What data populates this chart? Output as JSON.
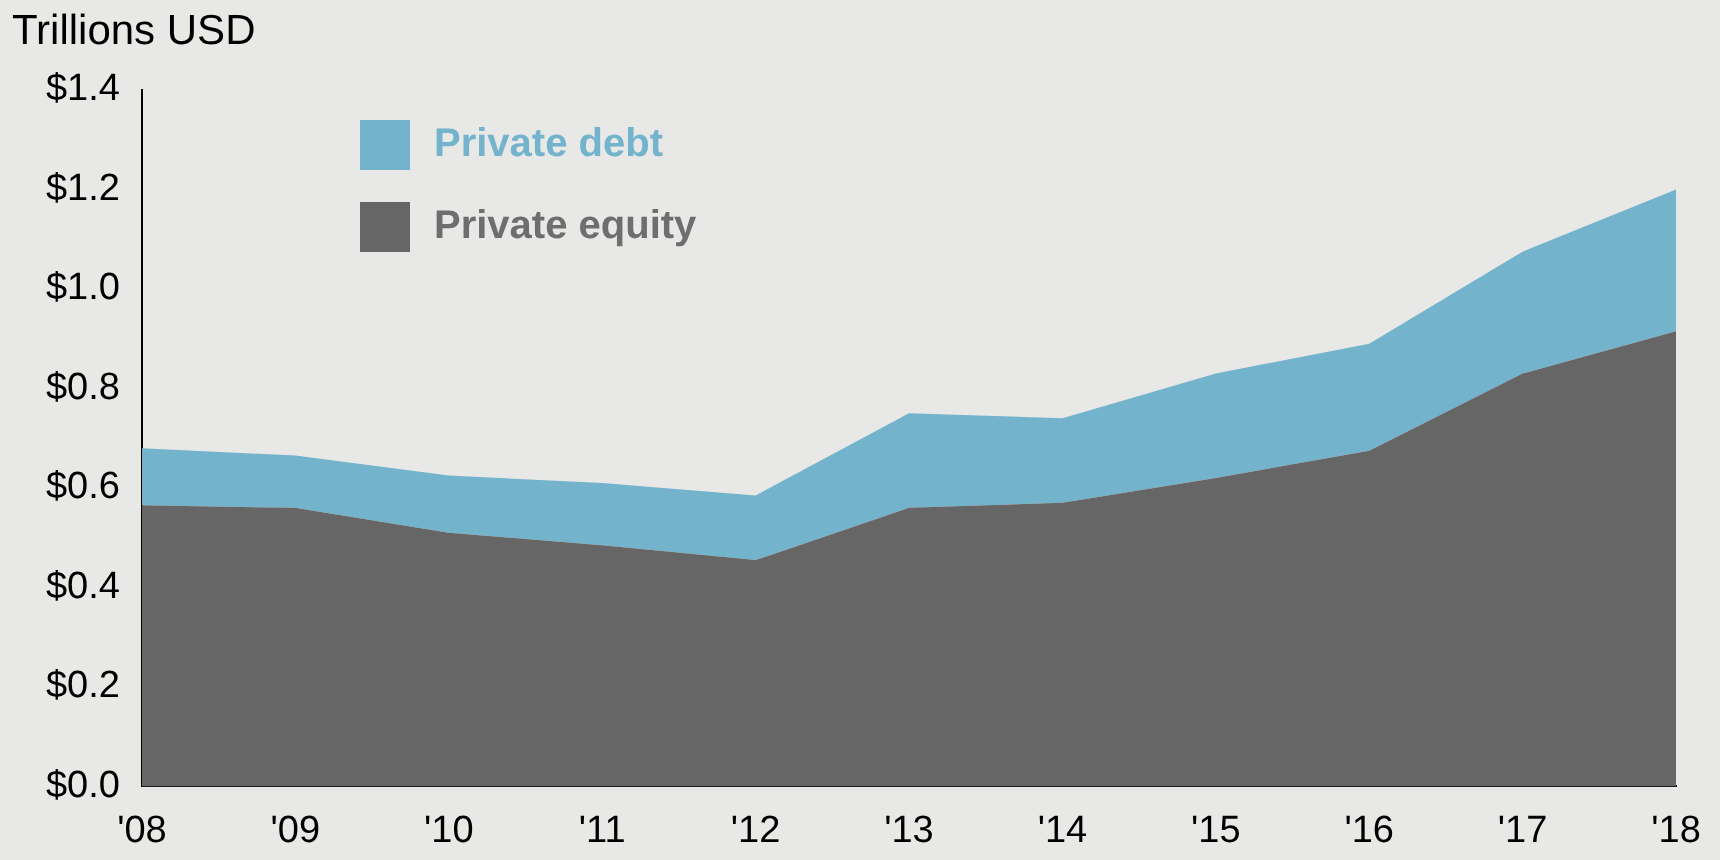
{
  "chart_data": {
    "type": "area",
    "stacked": true,
    "ylabel": "Trillions USD",
    "categories": [
      "'08",
      "'09",
      "'10",
      "'11",
      "'12",
      "'13",
      "'14",
      "'15",
      "'16",
      "'17",
      "'18"
    ],
    "series": [
      {
        "name": "Private equity",
        "color": "#666666",
        "values": [
          0.565,
          0.56,
          0.51,
          0.485,
          0.455,
          0.56,
          0.57,
          0.62,
          0.675,
          0.83,
          0.915
        ]
      },
      {
        "name": "Private debt",
        "color": "#73b3cc",
        "values": [
          0.115,
          0.105,
          0.115,
          0.125,
          0.13,
          0.19,
          0.17,
          0.21,
          0.215,
          0.245,
          0.285
        ]
      }
    ],
    "ylim": [
      0,
      1.4
    ],
    "yticks": [
      {
        "value": 0,
        "label": "$0.0"
      },
      {
        "value": 0.2,
        "label": "$0.2"
      },
      {
        "value": 0.4,
        "label": "$0.4"
      },
      {
        "value": 0.6,
        "label": "$0.6"
      },
      {
        "value": 0.8,
        "label": "$0.8"
      },
      {
        "value": 1.0,
        "label": "$1.0"
      },
      {
        "value": 1.2,
        "label": "$1.2"
      },
      {
        "value": 1.4,
        "label": "$1.4"
      }
    ],
    "grid": false,
    "legend": "top left"
  }
}
